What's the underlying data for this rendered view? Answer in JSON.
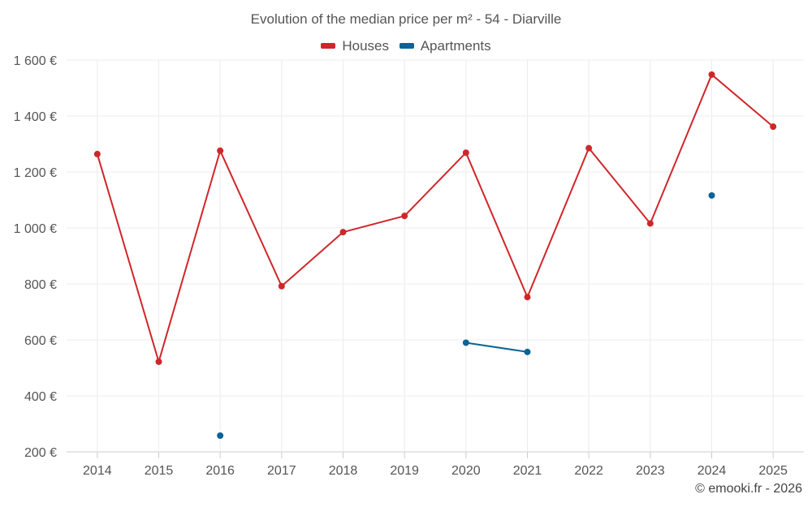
{
  "chart_data": {
    "type": "line",
    "title": "Evolution of the median price per m² - 54 - Diarville",
    "categories": [
      "2014",
      "2015",
      "2016",
      "2017",
      "2018",
      "2019",
      "2020",
      "2021",
      "2022",
      "2023",
      "2024",
      "2025"
    ],
    "series": [
      {
        "name": "Houses",
        "color": "#d0262a",
        "values": [
          1264,
          522,
          1276,
          792,
          985,
          1043,
          1269,
          753,
          1285,
          1016,
          1548,
          1362
        ]
      },
      {
        "name": "Apartments",
        "color": "#0b6398",
        "values": [
          null,
          null,
          258,
          null,
          null,
          null,
          590,
          557,
          null,
          null,
          1116,
          null
        ]
      }
    ],
    "yticks": [
      "1 600 €",
      "1 400 €",
      "1 200 €",
      "1 000 €",
      "800 €",
      "600 €",
      "400 €",
      "200 €"
    ],
    "ytick_values": [
      1600,
      1400,
      1200,
      1000,
      800,
      600,
      400,
      200
    ],
    "ylim": [
      200,
      1600
    ],
    "xlabel": "",
    "ylabel": "",
    "legend_position": "top-center",
    "grid": true
  },
  "credit": "© emooki.fr - 2026"
}
